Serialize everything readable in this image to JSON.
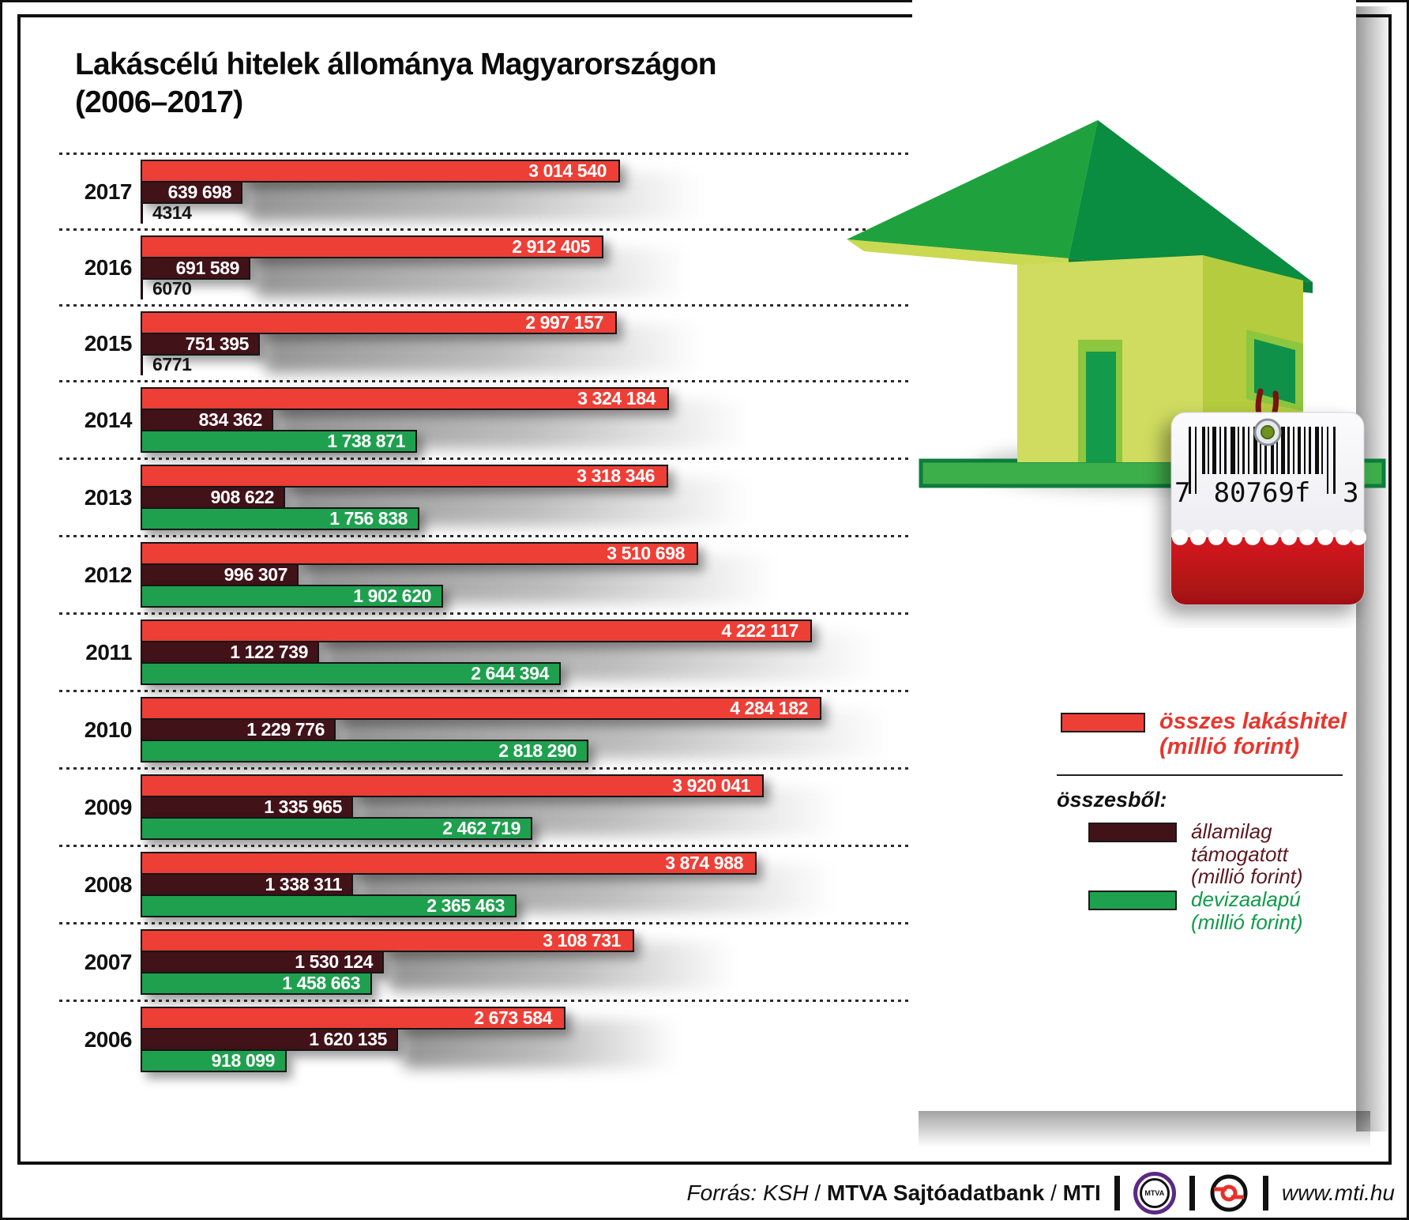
{
  "title": {
    "line1": "Lakáscélú hitelek állománya Magyarországon",
    "line2": "(2006–2017)"
  },
  "chart_data": {
    "type": "bar",
    "orientation": "horizontal",
    "title": "Lakáscélú hitelek állománya Magyarországon (2006–2017)",
    "unit": "millió forint",
    "x_max": 4284182,
    "series_names": {
      "total": "összes lakáshitel",
      "state": "államilag támogatott",
      "fx": "devizaalapú"
    },
    "years": [
      {
        "year": "2017",
        "total": 3014540,
        "state": 639698,
        "fx": 4314,
        "total_label": "3 014 540",
        "state_label": "639 698",
        "fx_label": "4314",
        "fx_small": true
      },
      {
        "year": "2016",
        "total": 2912405,
        "state": 691589,
        "fx": 6070,
        "total_label": "2 912 405",
        "state_label": "691 589",
        "fx_label": "6070",
        "fx_small": true
      },
      {
        "year": "2015",
        "total": 2997157,
        "state": 751395,
        "fx": 6771,
        "total_label": "2 997 157",
        "state_label": "751 395",
        "fx_label": "6771",
        "fx_small": true
      },
      {
        "year": "2014",
        "total": 3324184,
        "state": 834362,
        "fx": 1738871,
        "total_label": "3 324 184",
        "state_label": "834 362",
        "fx_label": "1 738 871",
        "fx_small": false
      },
      {
        "year": "2013",
        "total": 3318346,
        "state": 908622,
        "fx": 1756838,
        "total_label": "3 318 346",
        "state_label": "908 622",
        "fx_label": "1 756 838",
        "fx_small": false
      },
      {
        "year": "2012",
        "total": 3510698,
        "state": 996307,
        "fx": 1902620,
        "total_label": "3 510 698",
        "state_label": "996 307",
        "fx_label": "1 902 620",
        "fx_small": false
      },
      {
        "year": "2011",
        "total": 4222117,
        "state": 1122739,
        "fx": 2644394,
        "total_label": "4 222 117",
        "state_label": "1 122 739",
        "fx_label": "2 644 394",
        "fx_small": false
      },
      {
        "year": "2010",
        "total": 4284182,
        "state": 1229776,
        "fx": 2818290,
        "total_label": "4 284 182",
        "state_label": "1 229 776",
        "fx_label": "2 818 290",
        "fx_small": false
      },
      {
        "year": "2009",
        "total": 3920041,
        "state": 1335965,
        "fx": 2462719,
        "total_label": "3 920 041",
        "state_label": "1 335 965",
        "fx_label": "2 462 719",
        "fx_small": false
      },
      {
        "year": "2008",
        "total": 3874988,
        "state": 1338311,
        "fx": 2365463,
        "total_label": "3 874 988",
        "state_label": "1 338 311",
        "fx_label": "2 365 463",
        "fx_small": false
      },
      {
        "year": "2007",
        "total": 3108731,
        "state": 1530124,
        "fx": 1458663,
        "total_label": "3 108 731",
        "state_label": "1 530 124",
        "fx_label": "1 458 663",
        "fx_small": false
      },
      {
        "year": "2006",
        "total": 2673584,
        "state": 1620135,
        "fx": 918099,
        "total_label": "2 673 584",
        "state_label": "1 620 135",
        "fx_label": "918 099",
        "fx_small": false
      }
    ]
  },
  "legend": {
    "total_label": "összes lakáshitel",
    "total_unit": "(millió forint)",
    "subtitle": "összesből:",
    "state_label": "államilag támogatott",
    "state_unit": "(millió forint)",
    "fx_label": "devizaalapú",
    "fx_unit": "(millió forint)"
  },
  "tag": {
    "digit_left": "7",
    "digit_mid": "80769f",
    "digit_right": "3"
  },
  "footer": {
    "source_italic": "Forrás: KSH",
    "sep1": "/",
    "source_bold1": "MTVA Sajtóadatbank",
    "sep2": "/",
    "source_bold2": "MTI",
    "mtva_logo_text": "MTVA",
    "url": "www.mti.hu"
  },
  "colors": {
    "total_bar": "#ee3f37",
    "state_bar": "#421219",
    "fx_bar": "#1fa04f",
    "legend_total_text": "#e7362e",
    "legend_state_text": "#5c1a20",
    "legend_fx_text": "#0f9b49",
    "mtva_purple": "#5b2a83",
    "mti_red": "#e8312a",
    "tag_red": "#cb161c"
  }
}
